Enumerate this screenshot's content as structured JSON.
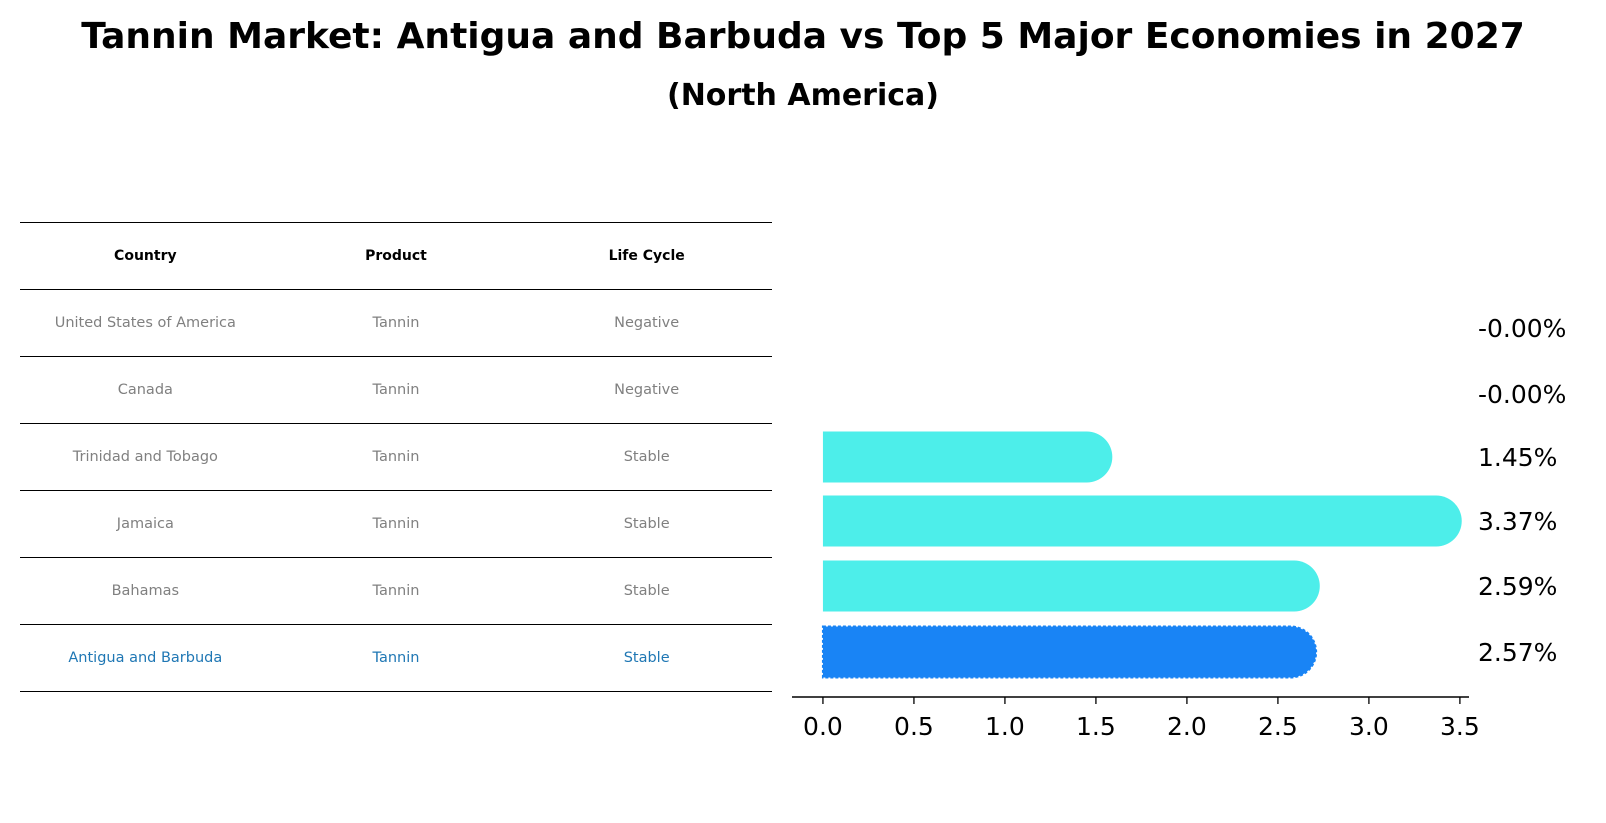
{
  "header": {
    "title": "Tannin Market: Antigua and Barbuda vs Top 5 Major Economies in 2027",
    "subtitle": "(North America)"
  },
  "table": {
    "columns": [
      "Country",
      "Product",
      "Life Cycle"
    ],
    "rows": [
      {
        "country": "United States of America",
        "product": "Tannin",
        "life_cycle": "Negative"
      },
      {
        "country": "Canada",
        "product": "Tannin",
        "life_cycle": "Negative"
      },
      {
        "country": "Trinidad and Tobago",
        "product": "Tannin",
        "life_cycle": "Stable"
      },
      {
        "country": "Jamaica",
        "product": "Tannin",
        "life_cycle": "Stable"
      },
      {
        "country": "Bahamas",
        "product": "Tannin",
        "life_cycle": "Stable"
      },
      {
        "country": "Antigua and Barbuda",
        "product": "Tannin",
        "life_cycle": "Stable"
      }
    ]
  },
  "colors": {
    "bar": "#4deeea",
    "highlight_bar": "#1984f5",
    "highlight_text": "#1f77b4",
    "muted_text": "#808080"
  },
  "chart_data": {
    "type": "bar",
    "orientation": "horizontal",
    "categories": [
      "United States of America",
      "Canada",
      "Trinidad and Tobago",
      "Jamaica",
      "Bahamas",
      "Antigua and Barbuda"
    ],
    "values": [
      -0.0,
      -0.0,
      1.45,
      3.37,
      2.59,
      2.57
    ],
    "data_labels": [
      "-0.00%",
      "-0.00%",
      "1.45%",
      "3.37%",
      "2.59%",
      "2.57%"
    ],
    "highlight_index": 5,
    "xlim": [
      -0.17,
      3.55
    ],
    "xticks": [
      0.0,
      0.5,
      1.0,
      1.5,
      2.0,
      2.5,
      3.0,
      3.5
    ],
    "xtick_labels": [
      "0.0",
      "0.5",
      "1.0",
      "1.5",
      "2.0",
      "2.5",
      "3.0",
      "3.5"
    ],
    "xlabel": "",
    "ylabel": "",
    "grid": false
  }
}
